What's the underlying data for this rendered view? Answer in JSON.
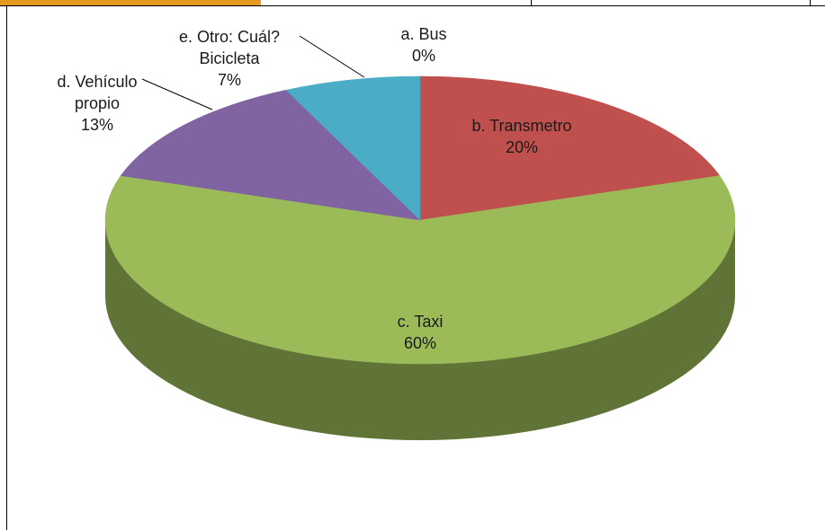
{
  "chart_data": {
    "type": "pie",
    "categories": [
      "a. Bus",
      "b. Transmetro",
      "c. Taxi",
      "d. Vehículo propio",
      "e. Otro: Cuál? Bicicleta"
    ],
    "values": [
      0,
      20,
      60,
      13,
      7
    ],
    "value_labels": [
      "0%",
      "20%",
      "60%",
      "13%",
      "7%"
    ],
    "colors": [
      "#4f81bd",
      "#c0504d",
      "#9bbb59",
      "#8064a2",
      "#4bacc6"
    ]
  }
}
